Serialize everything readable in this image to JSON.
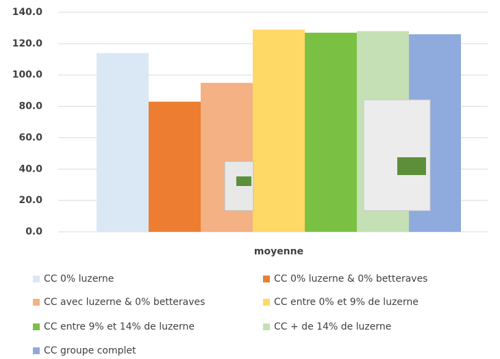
{
  "chart_data": {
    "type": "bar",
    "categories": [
      "moyenne"
    ],
    "series": [
      {
        "name": "CC 0% luzerne",
        "color": "#dae8f5",
        "values": [
          114
        ]
      },
      {
        "name": "CC 0% luzerne & 0% betteraves",
        "color": "#ed7d31",
        "values": [
          83
        ]
      },
      {
        "name": "CC avec luzerne & 0% betteraves",
        "color": "#f4b183",
        "values": [
          95
        ]
      },
      {
        "name": "CC entre 0% et 9% de luzerne",
        "color": "#ffd966",
        "values": [
          129
        ]
      },
      {
        "name": "CC entre 9% et 14% de luzerne",
        "color": "#7ac143",
        "values": [
          127
        ]
      },
      {
        "name": "CC + de 14% de luzerne",
        "color": "#c5e0b4",
        "values": [
          128
        ]
      },
      {
        "name": "CC groupe complet",
        "color": "#8faadc",
        "values": [
          126
        ]
      }
    ],
    "ylim": [
      0,
      140
    ],
    "yticks": [
      {
        "value": 0,
        "label": "0.0"
      },
      {
        "value": 20,
        "label": "20.0"
      },
      {
        "value": 40,
        "label": "40.0"
      },
      {
        "value": 60,
        "label": "60.0"
      },
      {
        "value": 80,
        "label": "80.0"
      },
      {
        "value": 100,
        "label": "100.0"
      },
      {
        "value": 120,
        "label": "120.0"
      },
      {
        "value": 140,
        "label": "140.0"
      }
    ],
    "grid": true,
    "legend": "bottom"
  }
}
